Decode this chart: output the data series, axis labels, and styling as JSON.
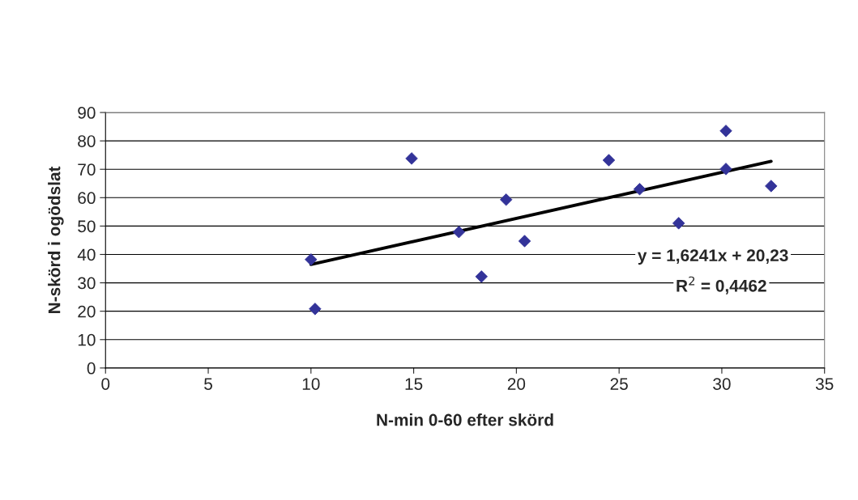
{
  "chart_data": {
    "type": "scatter",
    "xlabel": "N-min 0-60 efter skörd",
    "ylabel": "N-skörd i ogödslat",
    "xlim": [
      0,
      35
    ],
    "xticks": [
      0,
      5,
      10,
      15,
      20,
      25,
      30,
      35
    ],
    "ylim": [
      0,
      90
    ],
    "yticks": [
      0,
      10,
      20,
      30,
      40,
      50,
      60,
      70,
      80,
      90
    ],
    "grid": "y",
    "legend": false,
    "series": [
      {
        "marker": "diamond",
        "color": "#333399",
        "x": [
          10.0,
          10.2,
          14.9,
          17.2,
          18.3,
          19.5,
          20.4,
          24.5,
          26.0,
          27.9,
          30.2,
          30.2,
          32.4
        ],
        "values": [
          38.2,
          20.8,
          73.8,
          47.9,
          32.2,
          59.3,
          44.7,
          73.2,
          63.0,
          51.0,
          83.5,
          70.1,
          64.1
        ]
      },
      {
        "type": "line",
        "marker": "none",
        "color": "#000000",
        "x": [
          10.0,
          32.4
        ],
        "values": [
          36.5,
          72.8
        ]
      }
    ],
    "annotations": [
      "y = 1,6241x + 20,23",
      "R$^{2}$ = 0,4462"
    ]
  }
}
